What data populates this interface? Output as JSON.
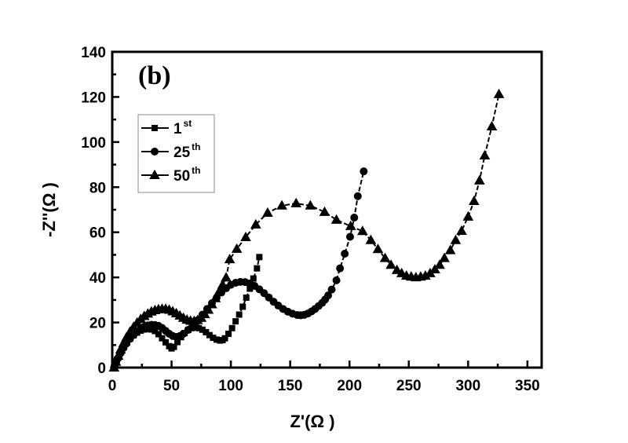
{
  "chart_data": {
    "type": "scatter",
    "panel_label": "(b)",
    "title": "",
    "xlabel": "Z'(Ω )",
    "ylabel": "-Z''(Ω )",
    "xlim": [
      0,
      362
    ],
    "ylim": [
      0,
      140
    ],
    "x_ticks": [
      0,
      50,
      100,
      150,
      200,
      250,
      300,
      350
    ],
    "x_tick_labels": [
      "0",
      "50",
      "100",
      "150",
      "200",
      "250",
      "300",
      "350"
    ],
    "y_ticks": [
      0,
      20,
      40,
      60,
      80,
      100,
      120,
      140
    ],
    "y_tick_labels": [
      "0",
      "20",
      "40",
      "60",
      "80",
      "100",
      "120",
      "140"
    ],
    "grid": false,
    "legend_position": "top-left",
    "series": [
      {
        "name": "1st",
        "label_base": "1",
        "label_sup": "st",
        "marker": "square",
        "color": "#000000",
        "x": [
          1.5,
          2.5,
          4,
          6,
          8,
          10,
          12.5,
          15,
          18,
          21,
          24,
          27,
          30,
          33,
          36,
          39,
          42,
          45,
          48,
          50,
          52,
          55,
          58,
          61,
          64,
          67,
          70,
          73,
          76,
          79,
          82,
          85,
          88,
          91,
          93,
          95,
          98,
          101,
          104,
          107,
          110,
          113,
          116,
          119,
          122,
          124
        ],
        "y": [
          0,
          1.5,
          3.5,
          5.5,
          7.5,
          9.2,
          11,
          12.8,
          14.3,
          15.5,
          16.4,
          16.9,
          17.1,
          16.9,
          16.2,
          14.8,
          13,
          11.2,
          9.5,
          8.5,
          9.2,
          11.3,
          13.5,
          15.3,
          16.7,
          17.5,
          17.8,
          17.5,
          16.8,
          15.7,
          14.4,
          13.2,
          12.4,
          12,
          12.2,
          13,
          15,
          17.5,
          20.5,
          23.5,
          27,
          31,
          35,
          39.5,
          44,
          49
        ]
      },
      {
        "name": "25th",
        "label_base": "25",
        "label_sup": "th",
        "marker": "circle",
        "color": "#000000",
        "x": [
          1.5,
          3,
          5,
          7,
          9.5,
          12,
          15,
          18,
          21,
          24,
          27,
          30,
          33,
          36,
          39,
          42,
          45,
          48,
          51,
          54,
          57,
          60,
          64,
          68,
          72,
          76,
          80,
          84,
          88,
          92,
          96,
          100,
          104,
          108,
          112,
          116,
          120,
          124,
          128,
          132,
          136,
          140,
          144,
          148,
          152,
          156,
          159,
          162,
          165,
          168,
          171,
          174,
          177,
          179.5,
          182,
          185,
          189,
          192,
          196,
          200.5,
          204,
          207,
          212
        ],
        "y": [
          0,
          2,
          4.2,
          6.4,
          8.7,
          10.8,
          12.8,
          14.5,
          16,
          17.2,
          18.1,
          18.7,
          19,
          18.9,
          18.5,
          17.6,
          16.3,
          15,
          14,
          13.6,
          14,
          15,
          16.7,
          18.8,
          21,
          23.5,
          26,
          28.5,
          31,
          33.3,
          35.2,
          36.7,
          37.6,
          38,
          37.9,
          37.3,
          36.2,
          34.7,
          33,
          31.1,
          29.2,
          27.5,
          26,
          24.8,
          23.9,
          23.3,
          23.2,
          23.4,
          24,
          24.9,
          26,
          27.3,
          28.7,
          30.2,
          32,
          34.6,
          38.7,
          44,
          50.5,
          58,
          66.5,
          76,
          87
        ]
      },
      {
        "name": "50th",
        "label_base": "50",
        "label_sup": "th",
        "marker": "triangle",
        "color": "#000000",
        "x": [
          1.5,
          3,
          5,
          7,
          9.5,
          12,
          15,
          18,
          21,
          24,
          27,
          30,
          33,
          36,
          39,
          42,
          45,
          48,
          51,
          54,
          57,
          60,
          63,
          66,
          69,
          72,
          75,
          78,
          81,
          84,
          87,
          90,
          93,
          96,
          99,
          105,
          112.5,
          121,
          131,
          143,
          155,
          167,
          179,
          189,
          201,
          211,
          218,
          224,
          230,
          235,
          240,
          244,
          248,
          252,
          256,
          260,
          264,
          268,
          272,
          276,
          280,
          285,
          289.5,
          294.5,
          300,
          305,
          309.6,
          314,
          320,
          326
        ],
        "y": [
          0,
          2.5,
          5.2,
          8,
          10.8,
          13.4,
          15.9,
          18,
          19.9,
          21.5,
          22.8,
          23.9,
          24.8,
          25.4,
          25.8,
          26,
          26,
          25.6,
          24.9,
          24,
          23,
          22,
          21.2,
          20.7,
          20.6,
          21,
          22,
          23.6,
          25.6,
          28,
          30.7,
          33.6,
          36.7,
          39.9,
          48,
          52.6,
          57.8,
          63.4,
          68.6,
          71.8,
          72.8,
          71.8,
          69,
          65.5,
          62.7,
          60.5,
          56.5,
          52.5,
          48.5,
          45.5,
          43.2,
          41.8,
          40.7,
          40.3,
          40,
          40.3,
          40.7,
          41.8,
          43.5,
          45.5,
          48.5,
          52,
          56.5,
          60.6,
          66.9,
          73.8,
          82.9,
          94,
          106.9,
          121.2
        ]
      }
    ]
  }
}
